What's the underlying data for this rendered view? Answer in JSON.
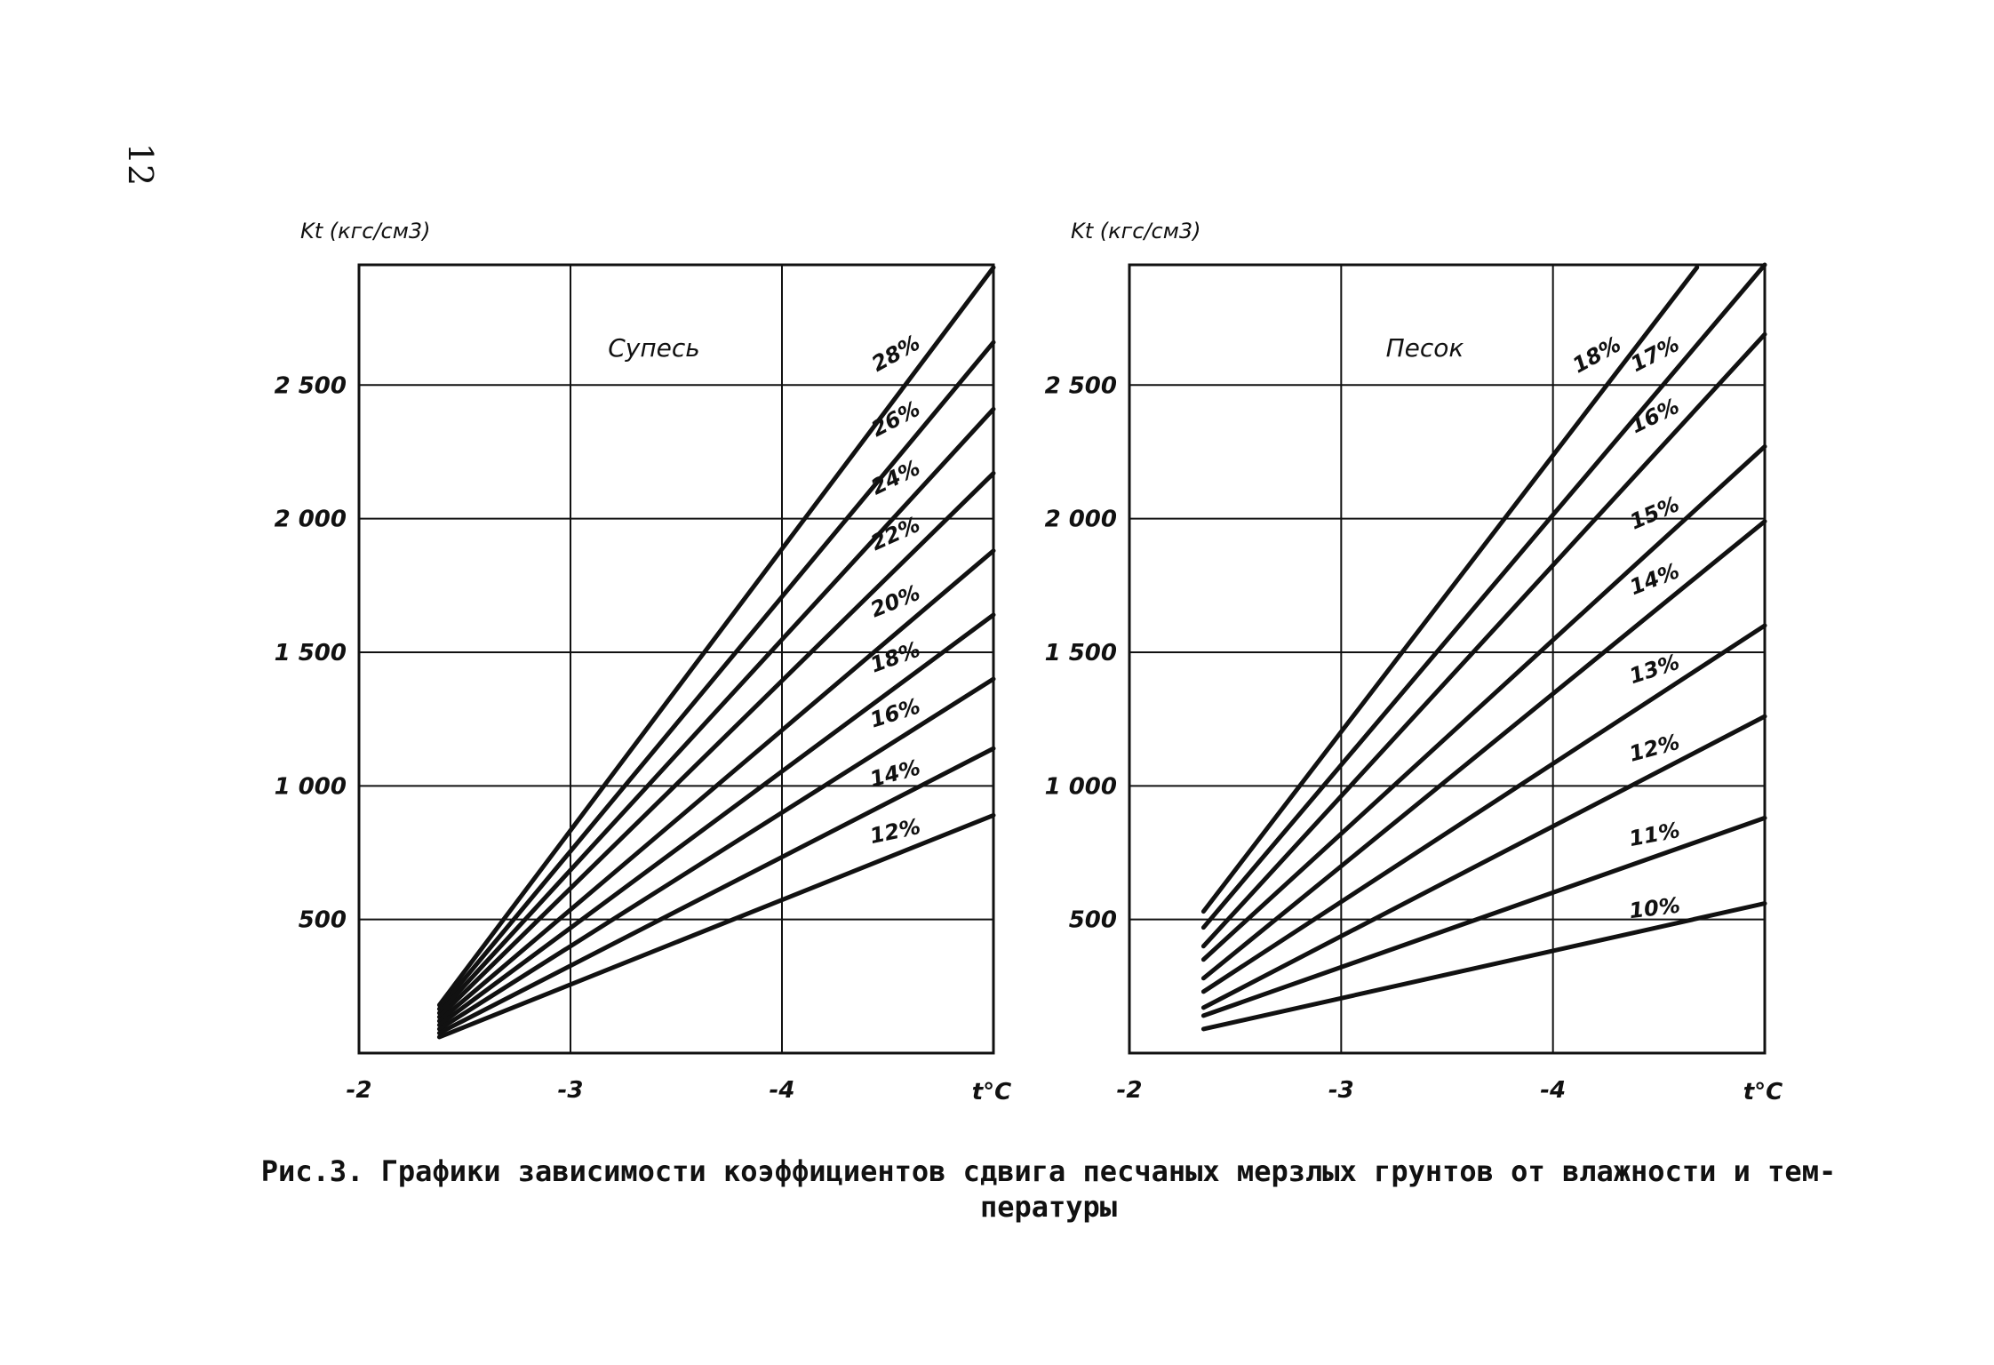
{
  "page_number": "12",
  "caption_line1": "Рис.3. Графики зависимости коэффициентов сдвига песчаных мерзлых грунтов от влажности и тем-",
  "caption_line2": "пературы",
  "chart_data": [
    {
      "type": "line",
      "title": "Супесь",
      "ylabel": "Kt (кгс/см3)",
      "xlabel": "t°C",
      "x_ticks": [
        -2,
        -3,
        -4
      ],
      "x_tick_labels": [
        "-2",
        "-3",
        "-4"
      ],
      "y_ticks": [
        500,
        1000,
        1500,
        2000,
        2500
      ],
      "y_tick_labels": [
        "500",
        "1 000",
        "1 500",
        "2 000",
        "2 500"
      ],
      "xlim": [
        -2,
        -5
      ],
      "ylim": [
        0,
        2950
      ],
      "grid": true,
      "series": [
        {
          "name": "28%",
          "x": [
            -2.38,
            -5
          ],
          "y": [
            180,
            2940
          ]
        },
        {
          "name": "26%",
          "x": [
            -2.38,
            -5
          ],
          "y": [
            165,
            2660
          ]
        },
        {
          "name": "24%",
          "x": [
            -2.38,
            -5
          ],
          "y": [
            150,
            2410
          ]
        },
        {
          "name": "22%",
          "x": [
            -2.38,
            -5
          ],
          "y": [
            135,
            2170
          ]
        },
        {
          "name": "20%",
          "x": [
            -2.38,
            -5
          ],
          "y": [
            120,
            1880
          ]
        },
        {
          "name": "18%",
          "x": [
            -2.38,
            -5
          ],
          "y": [
            105,
            1640
          ]
        },
        {
          "name": "16%",
          "x": [
            -2.38,
            -5
          ],
          "y": [
            90,
            1400
          ]
        },
        {
          "name": "14%",
          "x": [
            -2.38,
            -5
          ],
          "y": [
            75,
            1140
          ]
        },
        {
          "name": "12%",
          "x": [
            -2.38,
            -5
          ],
          "y": [
            60,
            890
          ]
        }
      ]
    },
    {
      "type": "line",
      "title": "Песок",
      "ylabel": "Kt (кгс/см3)",
      "xlabel": "t°C",
      "x_ticks": [
        -2,
        -3,
        -4
      ],
      "x_tick_labels": [
        "-2",
        "-3",
        "-4"
      ],
      "y_ticks": [
        500,
        1000,
        1500,
        2000,
        2500
      ],
      "y_tick_labels": [
        "500",
        "1 000",
        "1 500",
        "2 000",
        "2 500"
      ],
      "xlim": [
        -2,
        -5
      ],
      "ylim": [
        0,
        2950
      ],
      "grid": true,
      "series": [
        {
          "name": "18%",
          "x": [
            -2.35,
            -4.68
          ],
          "y": [
            530,
            2940
          ]
        },
        {
          "name": "17%",
          "x": [
            -2.35,
            -5
          ],
          "y": [
            470,
            2950
          ]
        },
        {
          "name": "16%",
          "x": [
            -2.35,
            -5
          ],
          "y": [
            400,
            2690
          ]
        },
        {
          "name": "15%",
          "x": [
            -2.35,
            -5
          ],
          "y": [
            350,
            2270
          ]
        },
        {
          "name": "14%",
          "x": [
            -2.35,
            -5
          ],
          "y": [
            280,
            1990
          ]
        },
        {
          "name": "13%",
          "x": [
            -2.35,
            -5
          ],
          "y": [
            230,
            1600
          ]
        },
        {
          "name": "12%",
          "x": [
            -2.35,
            -5
          ],
          "y": [
            170,
            1260
          ]
        },
        {
          "name": "11%",
          "x": [
            -2.35,
            -5
          ],
          "y": [
            140,
            880
          ]
        },
        {
          "name": "10%",
          "x": [
            -2.35,
            -5
          ],
          "y": [
            90,
            560
          ]
        }
      ]
    }
  ]
}
